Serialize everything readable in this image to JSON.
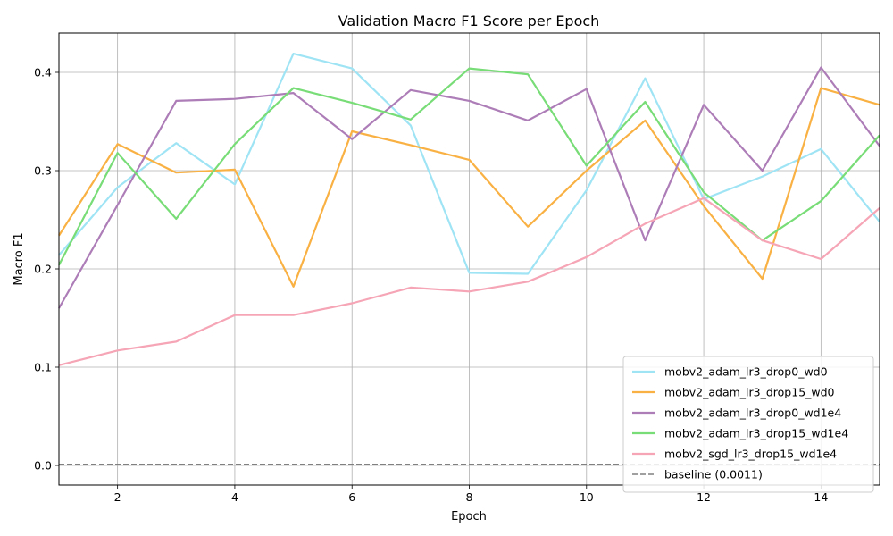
{
  "chart_data": {
    "type": "line",
    "title": "Validation Macro F1 Score per Epoch",
    "xlabel": "Epoch",
    "ylabel": "Macro F1",
    "xlim": [
      1,
      15
    ],
    "ylim": [
      -0.02,
      0.44
    ],
    "xticks": [
      2,
      4,
      6,
      8,
      10,
      12,
      14
    ],
    "yticks": [
      0.0,
      0.1,
      0.2,
      0.3,
      0.4
    ],
    "xtick_labels": [
      "2",
      "4",
      "6",
      "8",
      "10",
      "12",
      "14"
    ],
    "ytick_labels": [
      "0.0",
      "0.1",
      "0.2",
      "0.3",
      "0.4"
    ],
    "grid": true,
    "legend_position": "bottom-right",
    "x": [
      1,
      2,
      3,
      4,
      5,
      6,
      7,
      8,
      9,
      10,
      11,
      12,
      13,
      14,
      15
    ],
    "series": [
      {
        "name": "mobv2_adam_lr3_drop0_wd0",
        "color": "#9fe4f5",
        "values": [
          0.214,
          0.283,
          0.328,
          0.286,
          0.419,
          0.404,
          0.346,
          0.196,
          0.195,
          0.28,
          0.394,
          0.271,
          0.294,
          0.322,
          0.248
        ]
      },
      {
        "name": "mobv2_adam_lr3_drop15_wd0",
        "color": "#f9b144",
        "values": [
          0.234,
          0.327,
          0.298,
          0.301,
          0.182,
          0.34,
          0.326,
          0.311,
          0.243,
          0.3,
          0.351,
          0.264,
          0.19,
          0.384,
          0.367
        ]
      },
      {
        "name": "mobv2_adam_lr3_drop0_wd1e4",
        "color": "#ad7db8",
        "values": [
          0.16,
          0.265,
          0.371,
          0.373,
          0.379,
          0.332,
          0.382,
          0.371,
          0.351,
          0.383,
          0.229,
          0.367,
          0.3,
          0.405,
          0.325
        ]
      },
      {
        "name": "mobv2_adam_lr3_drop15_wd1e4",
        "color": "#78dc77",
        "values": [
          0.204,
          0.318,
          0.251,
          0.327,
          0.384,
          0.369,
          0.352,
          0.404,
          0.398,
          0.305,
          0.37,
          0.278,
          0.229,
          0.269,
          0.336
        ]
      },
      {
        "name": "mobv2_sgd_lr3_drop15_wd1e4",
        "color": "#f5a5b6",
        "values": [
          0.102,
          0.117,
          0.126,
          0.153,
          0.153,
          0.165,
          0.181,
          0.177,
          0.187,
          0.212,
          0.246,
          0.272,
          0.229,
          0.21,
          0.262
        ]
      }
    ],
    "baseline": {
      "name": "baseline (0.0011)",
      "value": 0.0011,
      "color": "#808080",
      "style": "dashed"
    }
  }
}
